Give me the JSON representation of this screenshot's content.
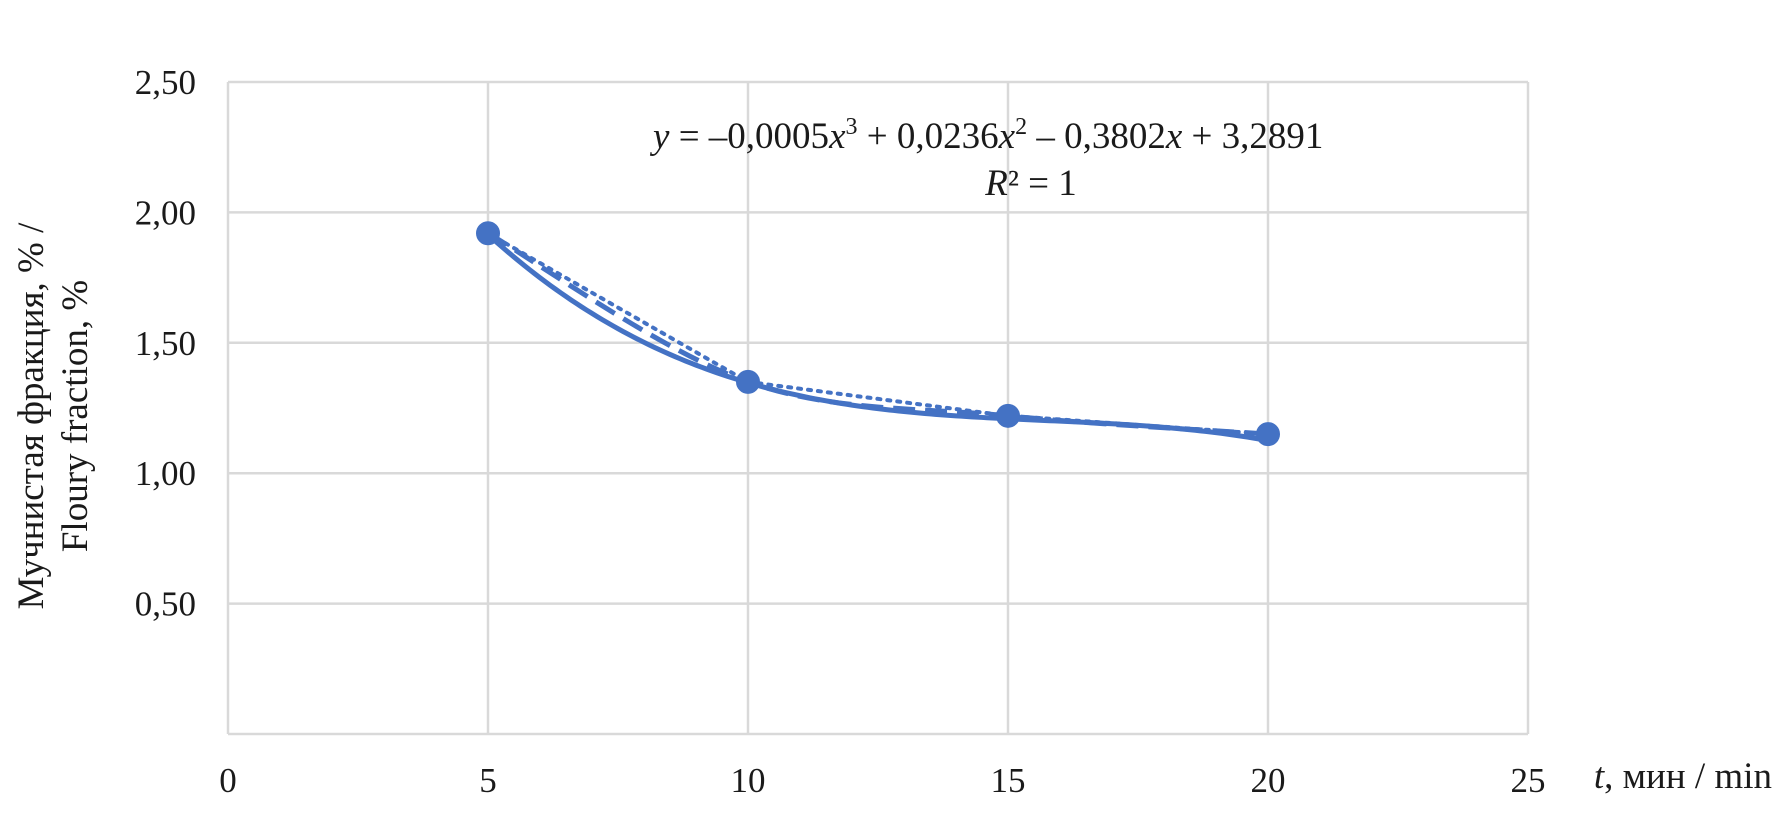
{
  "chart_data": {
    "type": "scatter",
    "x": [
      5,
      10,
      15,
      20
    ],
    "series": [
      {
        "values": [
          1.92,
          1.35,
          1.22,
          1.15
        ],
        "color": "#4472c4"
      }
    ],
    "xlim": [
      0,
      25
    ],
    "ylim": [
      0,
      2.5
    ],
    "xticks": [
      0,
      5,
      10,
      15,
      20,
      25
    ],
    "yticks": [
      0.5,
      1.0,
      1.5,
      2.0,
      2.5
    ],
    "x_tick_labels": [
      "0",
      "5",
      "10",
      "15",
      "20",
      "25"
    ],
    "y_tick_labels": [
      "0,50",
      "1,00",
      "1,50",
      "2,00",
      "2,50"
    ],
    "xlabel_italic": "t",
    "xlabel_rest": ", мин / min",
    "ylabel_line1": "Мучнистая фракция, % /",
    "ylabel_line2": "Floury fraction, %",
    "grid": true,
    "trendline": {
      "type": "polynomial",
      "order": 3,
      "coefficients": [
        -0.0005,
        0.0236,
        -0.3802,
        3.2891
      ],
      "r_squared": 1,
      "equation_parts": {
        "y": "y",
        "eq": " = –0,0005",
        "x1": "x",
        "sup1": "3",
        "plus1": " + 0,0236",
        "x2": "x",
        "sup2": "2",
        "minus": " – 0,3802",
        "x3": "x",
        "tail": " + 3,2891",
        "r": "R",
        "r_tail": "² = 1"
      }
    }
  }
}
